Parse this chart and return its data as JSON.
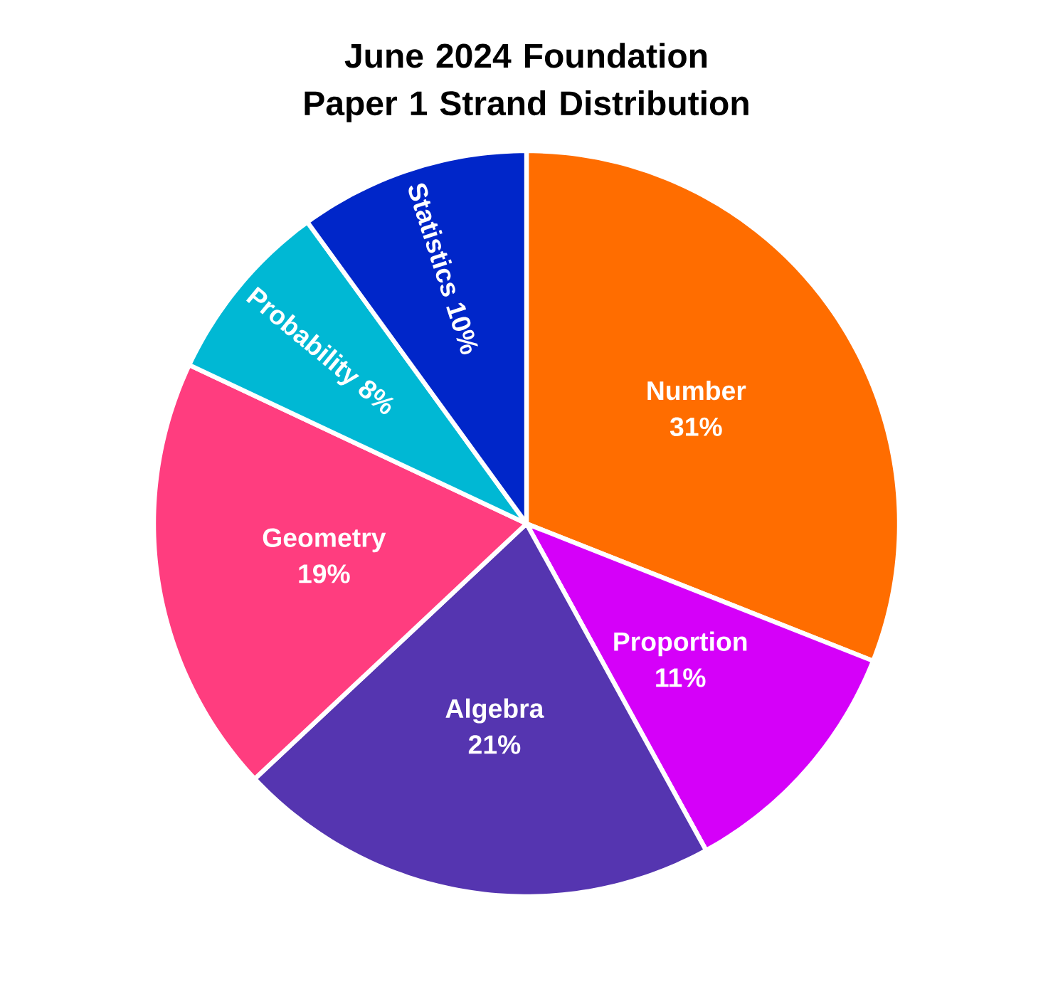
{
  "chart_data": {
    "type": "pie",
    "title": "June 2024 Foundation Paper 1 Strand Distribution",
    "categories": [
      "Number",
      "Proportion",
      "Algebra",
      "Geometry",
      "Probability",
      "Statistics"
    ],
    "values": [
      31,
      11,
      21,
      19,
      8,
      10
    ],
    "value_labels": [
      "31%",
      "11%",
      "21%",
      "19%",
      "8%",
      "10%"
    ],
    "colors": [
      "#ff6d00",
      "#d500f9",
      "#5535b0",
      "#ff3d7f",
      "#00b8d4",
      "#0026c9"
    ]
  }
}
